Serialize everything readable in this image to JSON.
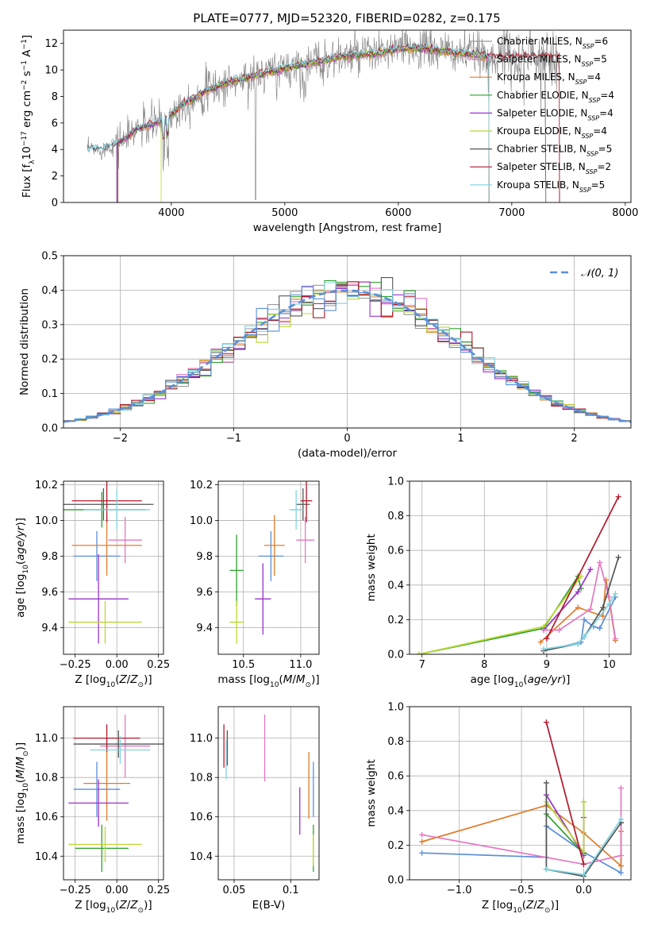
{
  "figure_title": "PLATE=0777, MJD=52320, FIBERID=0282, z=0.175",
  "colors": {
    "chabrier_miles": "#999999",
    "salpeter_miles": "#e377c2",
    "kroupa_miles": "#e07b2a",
    "chabrier_elodie": "#2ca02c",
    "salpeter_elodie": "#9932cc",
    "kroupa_elodie": "#bcd830",
    "chabrier_stelib": "#555555",
    "salpeter_stelib": "#b2182b",
    "kroupa_stelib": "#7fd4e0",
    "blue": "#5b8fd9",
    "grid": "#b0b0b0"
  },
  "chart_data": [
    {
      "id": "spectrum",
      "type": "line",
      "title": "PLATE=0777, MJD=52320, FIBERID=0282, z=0.175",
      "xlabel": "wavelength [Angstrom, rest frame]",
      "ylabel": "Flux [f_λ 10^-17 erg cm^-2 s^-1 A^-1]",
      "xlim": [
        3050,
        8050
      ],
      "ylim": [
        0,
        13
      ],
      "xticks": [
        4000,
        5000,
        6000,
        7000,
        8000
      ],
      "yticks": [
        0,
        2,
        4,
        6,
        8,
        10,
        12
      ],
      "grid": false,
      "legend_position": "top-right",
      "spectrum_profile": {
        "x": [
          3250,
          3400,
          3600,
          3700,
          3800,
          3950,
          4100,
          4300,
          4500,
          4700,
          4900,
          5100,
          5300,
          5500,
          5800,
          6000,
          6200,
          6400,
          6600,
          6800
        ],
        "y": [
          4.0,
          4.0,
          4.8,
          5.6,
          5.8,
          6.2,
          7.4,
          8.4,
          9.0,
          9.5,
          9.9,
          10.3,
          10.6,
          11.0,
          11.2,
          11.6,
          11.6,
          11.4,
          11.2,
          11.0
        ]
      },
      "legend": [
        {
          "label": "Chabrier MILES, N_SSP=6",
          "color": "#999999"
        },
        {
          "label": "Salpeter MILES, N_SSP=5",
          "color": "#e377c2"
        },
        {
          "label": "Kroupa MILES, N_SSP=4",
          "color": "#e07b2a"
        },
        {
          "label": "Chabrier ELODIE, N_SSP=4",
          "color": "#2ca02c"
        },
        {
          "label": "Salpeter ELODIE, N_SSP=4",
          "color": "#9932cc"
        },
        {
          "label": "Kroupa ELODIE, N_SSP=4",
          "color": "#bcd830"
        },
        {
          "label": "Chabrier STELIB, N_SSP=5",
          "color": "#555555"
        },
        {
          "label": "Salpeter STELIB, N_SSP=2",
          "color": "#b2182b"
        },
        {
          "label": "Kroupa STELIB, N_SSP=5",
          "color": "#7fd4e0"
        }
      ]
    },
    {
      "id": "residuals",
      "type": "line",
      "xlabel": "(data-model)/error",
      "ylabel": "Normed distribution",
      "xlim": [
        -2.5,
        2.5
      ],
      "ylim": [
        0,
        0.5
      ],
      "xticks": [
        -2,
        -1,
        0,
        1,
        2
      ],
      "yticks": [
        0.0,
        0.1,
        0.2,
        0.3,
        0.4,
        0.5
      ],
      "grid": true,
      "legend_position": "top-right",
      "gaussian_label": "𝒩(0, 1)",
      "histogram_bin_width": 0.1
    },
    {
      "id": "age_vs_Z",
      "type": "scatter",
      "xlabel": "Z [log10(Z/Z⊙)]",
      "ylabel": "age [log10(age/yr)]",
      "xlim": [
        -0.32,
        0.28
      ],
      "ylim": [
        9.25,
        10.22
      ],
      "xticks": [
        -0.25,
        0.0,
        0.25
      ],
      "yticks": [
        9.4,
        9.6,
        9.8,
        10.0,
        10.2
      ],
      "grid": true,
      "points": [
        {
          "x": -0.12,
          "xerr": 0.14,
          "y": 9.8,
          "yerr": 0.14,
          "color": "#5b8fd9"
        },
        {
          "x": -0.06,
          "xerr": 0.21,
          "y": 9.86,
          "yerr": 0.17,
          "color": "#e07b2a"
        },
        {
          "x": -0.09,
          "xerr": 0.26,
          "y": 10.06,
          "yerr": 0.1,
          "color": "#2ca02c"
        },
        {
          "x": -0.11,
          "xerr": 0.18,
          "y": 9.56,
          "yerr": 0.25,
          "color": "#9932cc"
        },
        {
          "x": -0.07,
          "xerr": 0.22,
          "y": 9.43,
          "yerr": 0.12,
          "color": "#bcd830"
        },
        {
          "x": 0.05,
          "xerr": 0.1,
          "y": 9.89,
          "yerr": 0.13,
          "color": "#e377c2"
        },
        {
          "x": -0.08,
          "xerr": 0.3,
          "y": 10.09,
          "yerr": 0.09,
          "color": "#555555"
        },
        {
          "x": -0.06,
          "xerr": 0.21,
          "y": 10.11,
          "yerr": 0.12,
          "color": "#b2182b"
        },
        {
          "x": 0.0,
          "xerr": 0.2,
          "y": 10.06,
          "yerr": 0.11,
          "color": "#7fd4e0"
        }
      ]
    },
    {
      "id": "age_vs_mass",
      "type": "scatter",
      "xlabel": "mass [log10(M/M⊙)]",
      "ylabel": "",
      "xlim": [
        10.28,
        11.16
      ],
      "ylim": [
        9.25,
        10.22
      ],
      "xticks": [
        10.5,
        11.0
      ],
      "yticks": [
        9.4,
        9.6,
        9.8,
        10.0,
        10.2
      ],
      "grid": true,
      "points": [
        {
          "x": 10.74,
          "xerr": 0.11,
          "y": 9.8,
          "yerr": 0.14,
          "color": "#5b8fd9"
        },
        {
          "x": 10.77,
          "xerr": 0.09,
          "y": 9.86,
          "yerr": 0.17,
          "color": "#e07b2a"
        },
        {
          "x": 10.44,
          "xerr": 0.06,
          "y": 9.72,
          "yerr": 0.2,
          "color": "#2ca02c"
        },
        {
          "x": 10.67,
          "xerr": 0.07,
          "y": 9.56,
          "yerr": 0.2,
          "color": "#9932cc"
        },
        {
          "x": 10.44,
          "xerr": 0.06,
          "y": 9.43,
          "yerr": 0.12,
          "color": "#bcd830"
        },
        {
          "x": 11.04,
          "xerr": 0.08,
          "y": 9.89,
          "yerr": 0.13,
          "color": "#e377c2"
        },
        {
          "x": 11.02,
          "xerr": 0.06,
          "y": 10.09,
          "yerr": 0.09,
          "color": "#555555"
        },
        {
          "x": 11.05,
          "xerr": 0.05,
          "y": 10.11,
          "yerr": 0.12,
          "color": "#b2182b"
        },
        {
          "x": 10.96,
          "xerr": 0.06,
          "y": 10.06,
          "yerr": 0.11,
          "color": "#7fd4e0"
        }
      ]
    },
    {
      "id": "massweight_vs_age",
      "type": "line",
      "xlabel": "age [log10(age/yr)]",
      "ylabel": "mass weight",
      "xlim": [
        6.8,
        10.35
      ],
      "ylim": [
        0,
        1.0
      ],
      "xticks": [
        7,
        8,
        9,
        10
      ],
      "yticks": [
        0.0,
        0.2,
        0.4,
        0.6,
        0.8,
        1.0
      ],
      "grid": true,
      "series": [
        {
          "color": "#5b8fd9",
          "x": [
            8.95,
            9.55,
            9.6,
            9.75,
            9.85,
            10.1
          ],
          "y": [
            0.02,
            0.07,
            0.2,
            0.16,
            0.15,
            0.33
          ]
        },
        {
          "color": "#e07b2a",
          "x": [
            8.9,
            9.5,
            9.9,
            9.95,
            10.1
          ],
          "y": [
            0.07,
            0.27,
            0.22,
            0.43,
            0.08
          ]
        },
        {
          "color": "#2ca02c",
          "x": [
            6.95,
            8.95,
            9.5,
            9.55
          ],
          "y": [
            0.0,
            0.15,
            0.45,
            0.38
          ]
        },
        {
          "color": "#9932cc",
          "x": [
            8.95,
            9.5,
            9.7
          ],
          "y": [
            0.14,
            0.36,
            0.49
          ]
        },
        {
          "color": "#bcd830",
          "x": [
            6.95,
            8.95,
            9.55
          ],
          "y": [
            0.0,
            0.16,
            0.45
          ]
        },
        {
          "color": "#e377c2",
          "x": [
            8.95,
            9.2,
            9.7,
            9.85,
            10.0,
            10.1
          ],
          "y": [
            0.14,
            0.14,
            0.26,
            0.53,
            0.33,
            0.09
          ]
        },
        {
          "color": "#555555",
          "x": [
            8.95,
            9.5,
            9.6,
            9.9,
            10.15
          ],
          "y": [
            0.02,
            0.06,
            0.1,
            0.27,
            0.56
          ]
        },
        {
          "color": "#b2182b",
          "x": [
            9.0,
            10.15
          ],
          "y": [
            0.09,
            0.91
          ]
        },
        {
          "color": "#7fd4e0",
          "x": [
            8.95,
            9.5,
            9.6,
            10.0,
            10.1
          ],
          "y": [
            0.03,
            0.06,
            0.1,
            0.29,
            0.35
          ]
        }
      ]
    },
    {
      "id": "mass_vs_Z",
      "type": "scatter",
      "xlabel": "Z [log10(Z/Z⊙)]",
      "ylabel": "mass [log10(M/M⊙)]",
      "xlim": [
        -0.32,
        0.28
      ],
      "ylim": [
        10.28,
        11.16
      ],
      "xticks": [
        -0.25,
        0.0,
        0.25
      ],
      "yticks": [
        10.4,
        10.6,
        10.8,
        11.0
      ],
      "grid": true,
      "points": [
        {
          "x": -0.12,
          "xerr": 0.14,
          "y": 10.74,
          "yerr": 0.14,
          "color": "#5b8fd9"
        },
        {
          "x": -0.06,
          "xerr": 0.14,
          "y": 10.77,
          "yerr": 0.19,
          "color": "#e07b2a"
        },
        {
          "x": -0.09,
          "xerr": 0.16,
          "y": 10.44,
          "yerr": 0.12,
          "color": "#2ca02c"
        },
        {
          "x": -0.11,
          "xerr": 0.18,
          "y": 10.67,
          "yerr": 0.12,
          "color": "#9932cc"
        },
        {
          "x": -0.07,
          "xerr": 0.22,
          "y": 10.46,
          "yerr": 0.09,
          "color": "#bcd830"
        },
        {
          "x": 0.05,
          "xerr": 0.15,
          "y": 10.96,
          "yerr": 0.16,
          "color": "#e377c2"
        },
        {
          "x": 0.01,
          "xerr": 0.27,
          "y": 10.97,
          "yerr": 0.07,
          "color": "#555555"
        },
        {
          "x": -0.06,
          "xerr": 0.2,
          "y": 11.0,
          "yerr": 0.07,
          "color": "#b2182b"
        },
        {
          "x": 0.02,
          "xerr": 0.18,
          "y": 10.94,
          "yerr": 0.07,
          "color": "#7fd4e0"
        }
      ]
    },
    {
      "id": "mass_vs_EBV",
      "type": "scatter",
      "xlabel": "E(B-V)",
      "ylabel": "",
      "xlim": [
        0.036,
        0.125
      ],
      "ylim": [
        10.28,
        11.16
      ],
      "xticks": [
        0.05,
        0.1
      ],
      "yticks": [
        10.4,
        10.6,
        10.8,
        11.0
      ],
      "grid": true,
      "points": [
        {
          "x": 0.12,
          "y": 10.74,
          "yerr": 0.14,
          "color": "#5b8fd9"
        },
        {
          "x": 0.116,
          "y": 10.76,
          "yerr": 0.17,
          "color": "#e07b2a"
        },
        {
          "x": 0.12,
          "y": 10.44,
          "yerr": 0.12,
          "color": "#2ca02c"
        },
        {
          "x": 0.108,
          "y": 10.63,
          "yerr": 0.12,
          "color": "#9932cc"
        },
        {
          "x": 0.12,
          "y": 10.43,
          "yerr": 0.08,
          "color": "#bcd830"
        },
        {
          "x": 0.077,
          "y": 10.95,
          "yerr": 0.17,
          "color": "#e377c2"
        },
        {
          "x": 0.044,
          "y": 10.95,
          "yerr": 0.09,
          "color": "#555555"
        },
        {
          "x": 0.041,
          "y": 10.96,
          "yerr": 0.11,
          "color": "#b2182b"
        },
        {
          "x": 0.043,
          "y": 10.89,
          "yerr": 0.1,
          "color": "#7fd4e0"
        }
      ]
    },
    {
      "id": "massweight_vs_Z",
      "type": "line",
      "xlabel": "Z [log10(Z/Z⊙)]",
      "ylabel": "mass weight",
      "xlim": [
        -1.4,
        0.38
      ],
      "ylim": [
        0,
        1.0
      ],
      "xticks": [
        -1.0,
        -0.5,
        0.0
      ],
      "yticks": [
        0.0,
        0.2,
        0.4,
        0.6,
        0.8,
        1.0
      ],
      "grid": true,
      "series": [
        {
          "color": "#5b8fd9",
          "x": [
            -1.3,
            -0.3,
            -0.3,
            0.0,
            0.3,
            0.3
          ],
          "y": [
            0.155,
            0.13,
            0.31,
            0.16,
            0.04,
            0.33
          ]
        },
        {
          "color": "#e07b2a",
          "x": [
            -1.3,
            -0.3,
            0.0,
            0.3,
            0.3
          ],
          "y": [
            0.22,
            0.43,
            0.27,
            0.08,
            0.28
          ]
        },
        {
          "color": "#2ca02c",
          "x": [
            -0.3,
            0.0,
            0.0
          ],
          "y": [
            0.38,
            0.15,
            0.45
          ]
        },
        {
          "color": "#9932cc",
          "x": [
            -0.3,
            0.0,
            0.0
          ],
          "y": [
            0.49,
            0.14,
            0.36
          ]
        },
        {
          "color": "#bcd830",
          "x": [
            -0.3,
            0.0,
            0.0
          ],
          "y": [
            0.45,
            0.16,
            0.45
          ]
        },
        {
          "color": "#e377c2",
          "x": [
            -1.3,
            0.0,
            0.3,
            0.3
          ],
          "y": [
            0.26,
            0.09,
            0.14,
            0.53
          ]
        },
        {
          "color": "#555555",
          "x": [
            -0.3,
            -0.3,
            0.0,
            0.3
          ],
          "y": [
            0.56,
            0.06,
            0.02,
            0.33
          ]
        },
        {
          "color": "#b2182b",
          "x": [
            -0.3,
            0.0
          ],
          "y": [
            0.91,
            0.09
          ]
        },
        {
          "color": "#7fd4e0",
          "x": [
            -0.3,
            0.0,
            0.3
          ],
          "y": [
            0.06,
            0.03,
            0.35
          ]
        }
      ]
    }
  ]
}
